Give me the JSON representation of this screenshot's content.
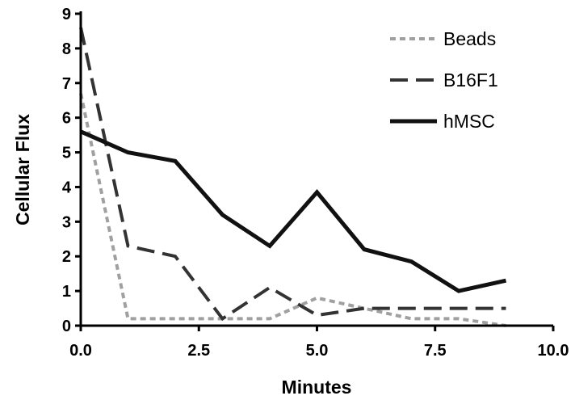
{
  "chart_data": {
    "type": "line",
    "title": "",
    "xlabel": "Minutes",
    "ylabel": "Cellular Flux",
    "xlim": [
      0,
      10
    ],
    "ylim": [
      0,
      9
    ],
    "x_ticks": [
      "0.0",
      "2.5",
      "5.0",
      "7.5",
      "10.0"
    ],
    "y_ticks": [
      "0",
      "1",
      "2",
      "3",
      "4",
      "5",
      "6",
      "7",
      "8",
      "9"
    ],
    "grid": false,
    "legend_position": "top-right",
    "series": [
      {
        "name": "Beads",
        "color": "#a0a0a0",
        "style": "dotted",
        "x": [
          0,
          1,
          2,
          3,
          4,
          5,
          6,
          7,
          8,
          9
        ],
        "y": [
          6.7,
          0.2,
          0.2,
          0.2,
          0.2,
          0.8,
          0.5,
          0.2,
          0.2,
          0.0
        ]
      },
      {
        "name": "B16F1",
        "color": "#333333",
        "style": "dashed",
        "x": [
          0,
          1,
          2,
          3,
          4,
          5,
          6,
          7,
          8,
          9
        ],
        "y": [
          8.6,
          2.3,
          2.0,
          0.2,
          1.1,
          0.3,
          0.5,
          0.5,
          0.5,
          0.5
        ]
      },
      {
        "name": "hMSC",
        "color": "#111111",
        "style": "solid",
        "x": [
          0,
          1,
          2,
          3,
          4,
          5,
          6,
          7,
          8,
          9
        ],
        "y": [
          5.6,
          5.0,
          4.75,
          3.2,
          2.3,
          3.85,
          2.2,
          1.85,
          1.0,
          1.3
        ]
      }
    ]
  }
}
